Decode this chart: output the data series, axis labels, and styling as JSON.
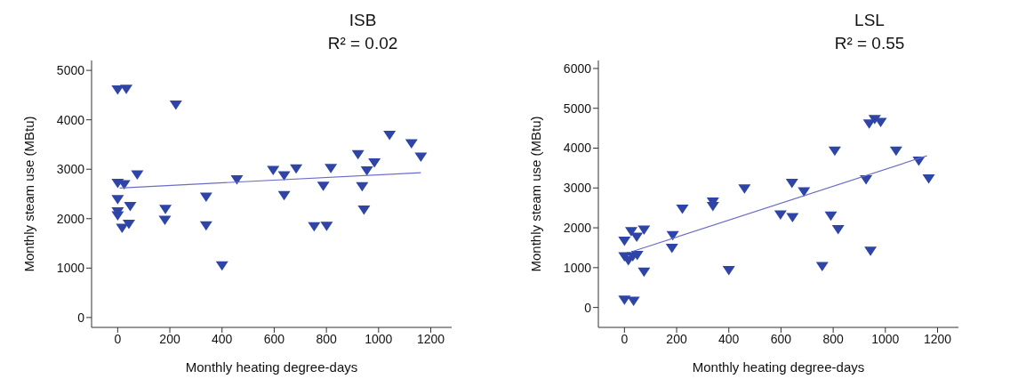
{
  "chart_data": [
    {
      "type": "scatter",
      "title": "ISB",
      "annotations": [
        "R² = 0.02"
      ],
      "xlabel": "Monthly heating degree-days",
      "ylabel": "Monthly steam use (MBtu)",
      "xlim": [
        -100,
        1280
      ],
      "xticks": [
        0,
        200,
        400,
        600,
        800,
        1000,
        1200
      ],
      "ylim": [
        -200,
        5200
      ],
      "yticks": [
        0,
        1000,
        2000,
        3000,
        4000,
        5000
      ],
      "series": [
        {
          "color": "#2e44a6",
          "marker": "triangle",
          "x": [
            0,
            33,
            223,
            0,
            25,
            75,
            0,
            48,
            0,
            0,
            17,
            43,
            183,
            181,
            339,
            339,
            400,
            457,
            596,
            638,
            638,
            684,
            753,
            801,
            788,
            817,
            921,
            937,
            944,
            955,
            984,
            1042,
            1126,
            1162
          ],
          "values": [
            4610,
            4620,
            4300,
            2720,
            2690,
            2890,
            2390,
            2250,
            2140,
            2060,
            1810,
            1890,
            2190,
            1970,
            2440,
            1860,
            1050,
            2790,
            2980,
            2870,
            2470,
            3010,
            1840,
            1850,
            2660,
            3020,
            3300,
            2650,
            2180,
            2970,
            3130,
            3690,
            3520,
            3250
          ]
        },
        {
          "type": "line",
          "color": "#6b6bc8",
          "marker": "none",
          "x": [
            8,
            1162
          ],
          "values": [
            2620,
            2930
          ]
        }
      ]
    },
    {
      "type": "scatter",
      "title": "LSL",
      "annotations": [
        "R² = 0.55"
      ],
      "xlabel": "Monthly heating degree-days",
      "ylabel": "Monthly steam use (MBtu)",
      "xlim": [
        -100,
        1280
      ],
      "xticks": [
        0,
        200,
        400,
        600,
        800,
        1000,
        1200
      ],
      "ylim": [
        -500,
        6200
      ],
      "yticks": [
        0,
        1000,
        2000,
        3000,
        4000,
        5000,
        6000
      ],
      "series": [
        {
          "color": "#2e44a6",
          "marker": "triangle",
          "x": [
            0,
            0,
            15,
            32,
            49,
            26,
            47,
            75,
            75,
            0,
            35,
            185,
            182,
            222,
            339,
            339,
            400,
            460,
            598,
            642,
            644,
            688,
            758,
            791,
            806,
            819,
            926,
            938,
            959,
            982,
            943,
            1041,
            1128,
            1166
          ],
          "values": [
            1670,
            1280,
            1180,
            1280,
            1310,
            1910,
            1770,
            1950,
            890,
            190,
            160,
            1810,
            1490,
            2470,
            2650,
            2540,
            930,
            2980,
            2330,
            3120,
            2260,
            2910,
            1030,
            2300,
            3930,
            1960,
            3210,
            4610,
            4720,
            4650,
            1420,
            3930,
            3680,
            3230
          ]
        },
        {
          "type": "line",
          "color": "#6b6bc8",
          "marker": "none",
          "x": [
            32,
            1160
          ],
          "values": [
            1410,
            3810
          ]
        }
      ]
    }
  ]
}
